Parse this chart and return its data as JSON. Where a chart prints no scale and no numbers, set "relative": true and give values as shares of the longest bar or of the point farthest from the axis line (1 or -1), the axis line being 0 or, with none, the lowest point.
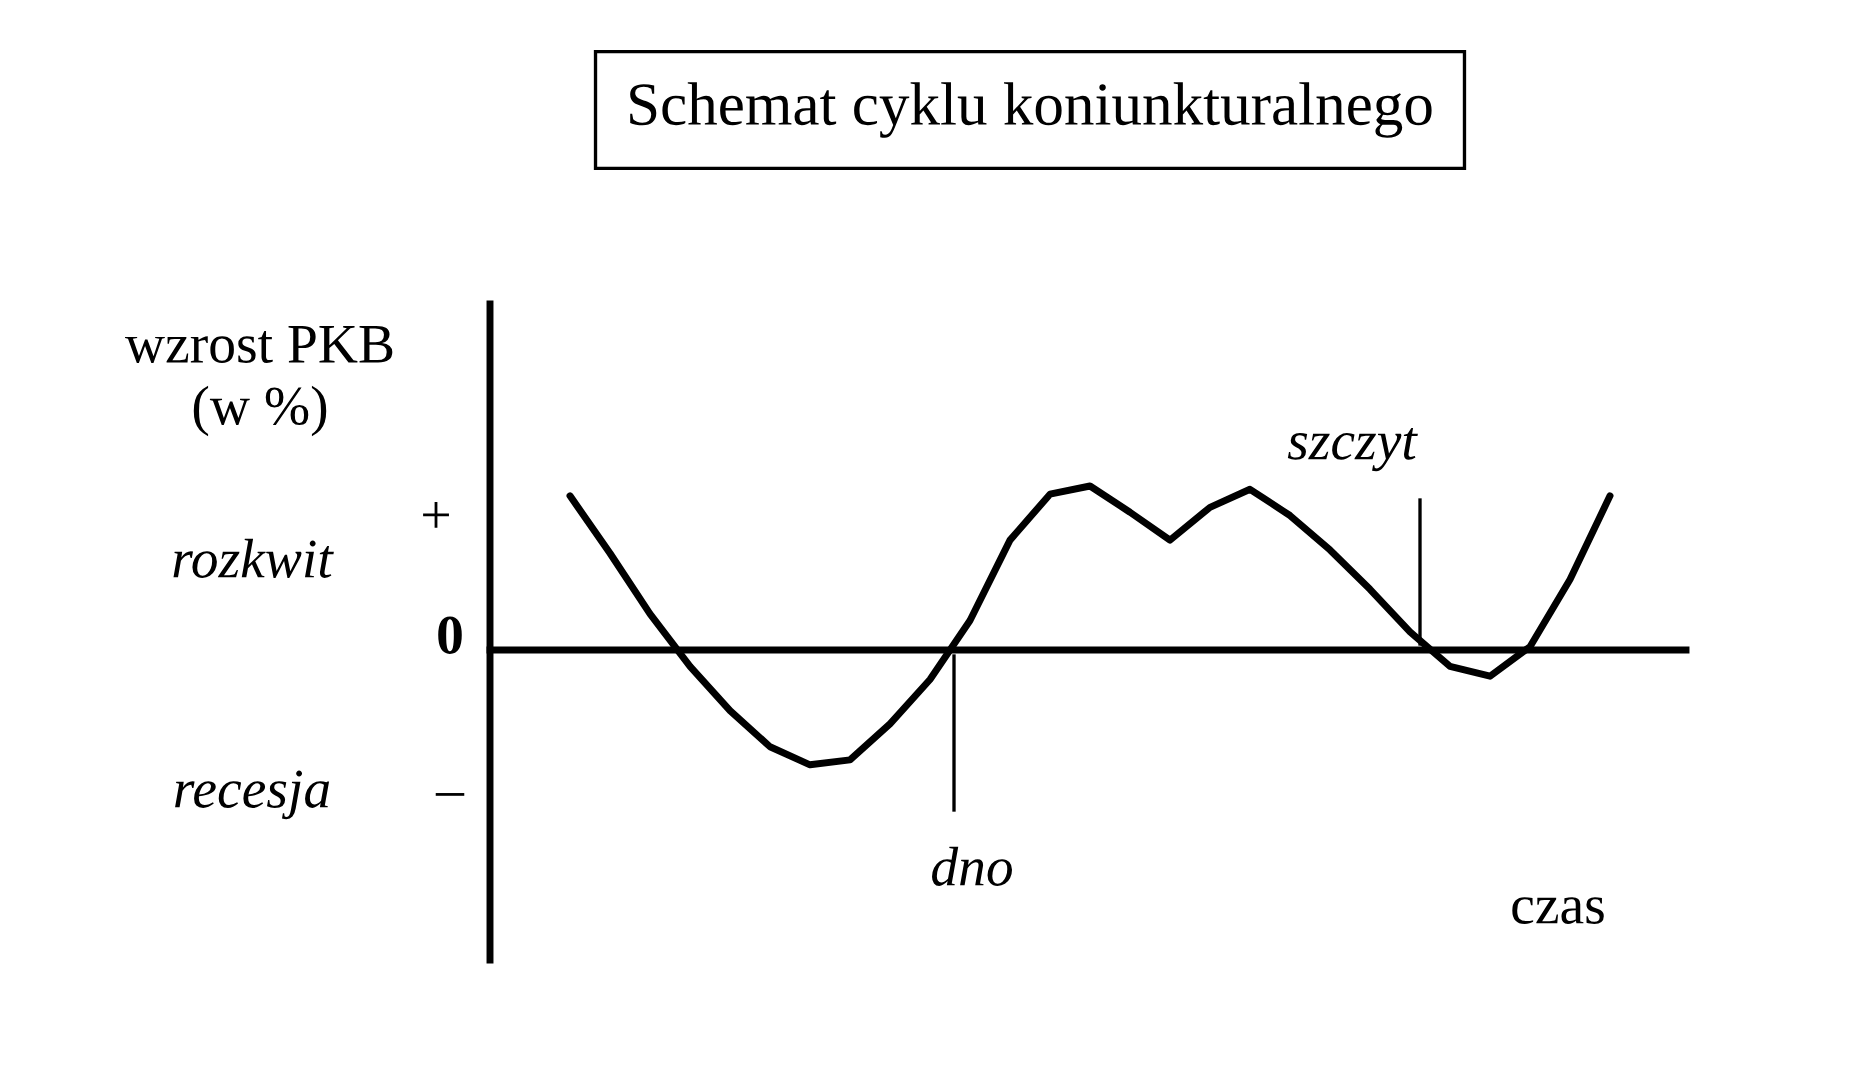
{
  "chart_data": {
    "type": "line",
    "relative": true,
    "title": "Schemat cyklu koniunkturalnego",
    "ylabel": "wzrost PKB\n(w %)",
    "xlabel": "czas",
    "categories": [
      null,
      null,
      null,
      null,
      null,
      null,
      null,
      null,
      null,
      null,
      null,
      null,
      null,
      null,
      null,
      null,
      null,
      null,
      null,
      null,
      null,
      null,
      null,
      null,
      null,
      null,
      null
    ],
    "series": [
      {
        "color": "#000000",
        "values": [
          0.94,
          0.59,
          0.22,
          -0.1,
          -0.37,
          -0.59,
          -0.7,
          -0.67,
          -0.45,
          -0.18,
          0.18,
          0.67,
          0.95,
          1.0,
          0.84,
          0.67,
          0.87,
          0.98,
          0.82,
          0.61,
          0.37,
          0.11,
          -0.1,
          -0.16,
          0.02,
          0.43,
          0.94
        ]
      }
    ],
    "annotations": [
      "rozkwit",
      "recesja",
      "+",
      "0",
      "–",
      "szczyt",
      "dno"
    ],
    "legend": false,
    "marker": "none",
    "line_style": "solid"
  }
}
